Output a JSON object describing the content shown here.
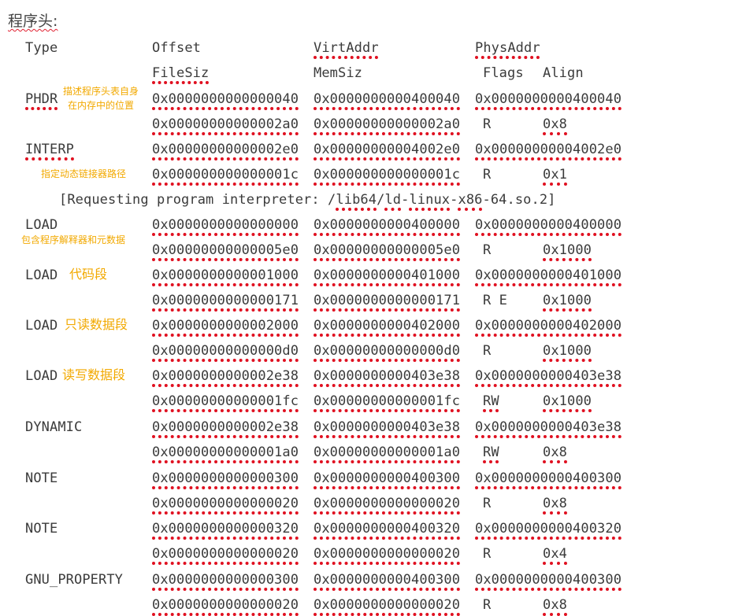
{
  "heading": "程序头:",
  "headers": {
    "type": "Type",
    "offset": "Offset",
    "virt": "VirtAddr",
    "phys": "PhysAddr",
    "filesiz": "FileSiz",
    "memsiz": "MemSiz",
    "flags": "Flags",
    "align": "Align"
  },
  "rows": [
    {
      "type": "PHDR",
      "offset": "0x0000000000000040",
      "virt": "0x0000000000400040",
      "phys": "0x0000000000400040",
      "filesiz": "0x00000000000002a0",
      "memsiz": "0x00000000000002a0",
      "flags": "R",
      "align": "0x8"
    },
    {
      "type": "INTERP",
      "offset": "0x00000000000002e0",
      "virt": "0x00000000004002e0",
      "phys": "0x00000000004002e0",
      "filesiz": "0x000000000000001c",
      "memsiz": "0x000000000000001c",
      "flags": "R",
      "align": "0x1"
    },
    {
      "type": "LOAD",
      "offset": "0x0000000000000000",
      "virt": "0x0000000000400000",
      "phys": "0x0000000000400000",
      "filesiz": "0x00000000000005e0",
      "memsiz": "0x00000000000005e0",
      "flags": "R",
      "align": "0x1000"
    },
    {
      "type": "LOAD",
      "offset": "0x0000000000001000",
      "virt": "0x0000000000401000",
      "phys": "0x0000000000401000",
      "filesiz": "0x0000000000000171",
      "memsiz": "0x0000000000000171",
      "flags": "R E",
      "align": "0x1000"
    },
    {
      "type": "LOAD",
      "offset": "0x0000000000002000",
      "virt": "0x0000000000402000",
      "phys": "0x0000000000402000",
      "filesiz": "0x00000000000000d0",
      "memsiz": "0x00000000000000d0",
      "flags": "R",
      "align": "0x1000"
    },
    {
      "type": "LOAD",
      "offset": "0x0000000000002e38",
      "virt": "0x0000000000403e38",
      "phys": "0x0000000000403e38",
      "filesiz": "0x00000000000001fc",
      "memsiz": "0x00000000000001fc",
      "flags": "RW",
      "align": "0x1000"
    },
    {
      "type": "DYNAMIC",
      "offset": "0x0000000000002e38",
      "virt": "0x0000000000403e38",
      "phys": "0x0000000000403e38",
      "filesiz": "0x00000000000001a0",
      "memsiz": "0x00000000000001a0",
      "flags": "RW",
      "align": "0x8"
    },
    {
      "type": "NOTE",
      "offset": "0x0000000000000300",
      "virt": "0x0000000000400300",
      "phys": "0x0000000000400300",
      "filesiz": "0x0000000000000020",
      "memsiz": "0x0000000000000020",
      "flags": "R",
      "align": "0x8"
    },
    {
      "type": "NOTE",
      "offset": "0x0000000000000320",
      "virt": "0x0000000000400320",
      "phys": "0x0000000000400320",
      "filesiz": "0x0000000000000020",
      "memsiz": "0x0000000000000020",
      "flags": "R",
      "align": "0x4"
    },
    {
      "type": "GNU_PROPERTY",
      "offset": "0x0000000000000300",
      "virt": "0x0000000000400300",
      "phys": "0x0000000000400300",
      "filesiz": "0x0000000000000020",
      "memsiz": "0x0000000000000020",
      "flags": "R",
      "align": "0x8"
    }
  ],
  "interp_line": {
    "open": "[",
    "text": "Requesting program interpreter: /",
    "lib": "lib64",
    "slash1": "/",
    "ld": "ld",
    "dash1": "-",
    "linux": "linux",
    "dash2": "-",
    "x86": "x86",
    "rest": "-64.so.2]"
  },
  "annotations": {
    "phdr_line1": "描述程序头表自身",
    "phdr_line2": "在内存中的位置",
    "interp": "指定动态链接器路径",
    "load0": "包含程序解释器和元数据",
    "load1": "代码段",
    "load2": "只读数据段",
    "load3": "读写数据段"
  },
  "colors": {
    "squiggle": "#e01020",
    "annotation": "#f2a900",
    "text": "#3b3b3b"
  }
}
